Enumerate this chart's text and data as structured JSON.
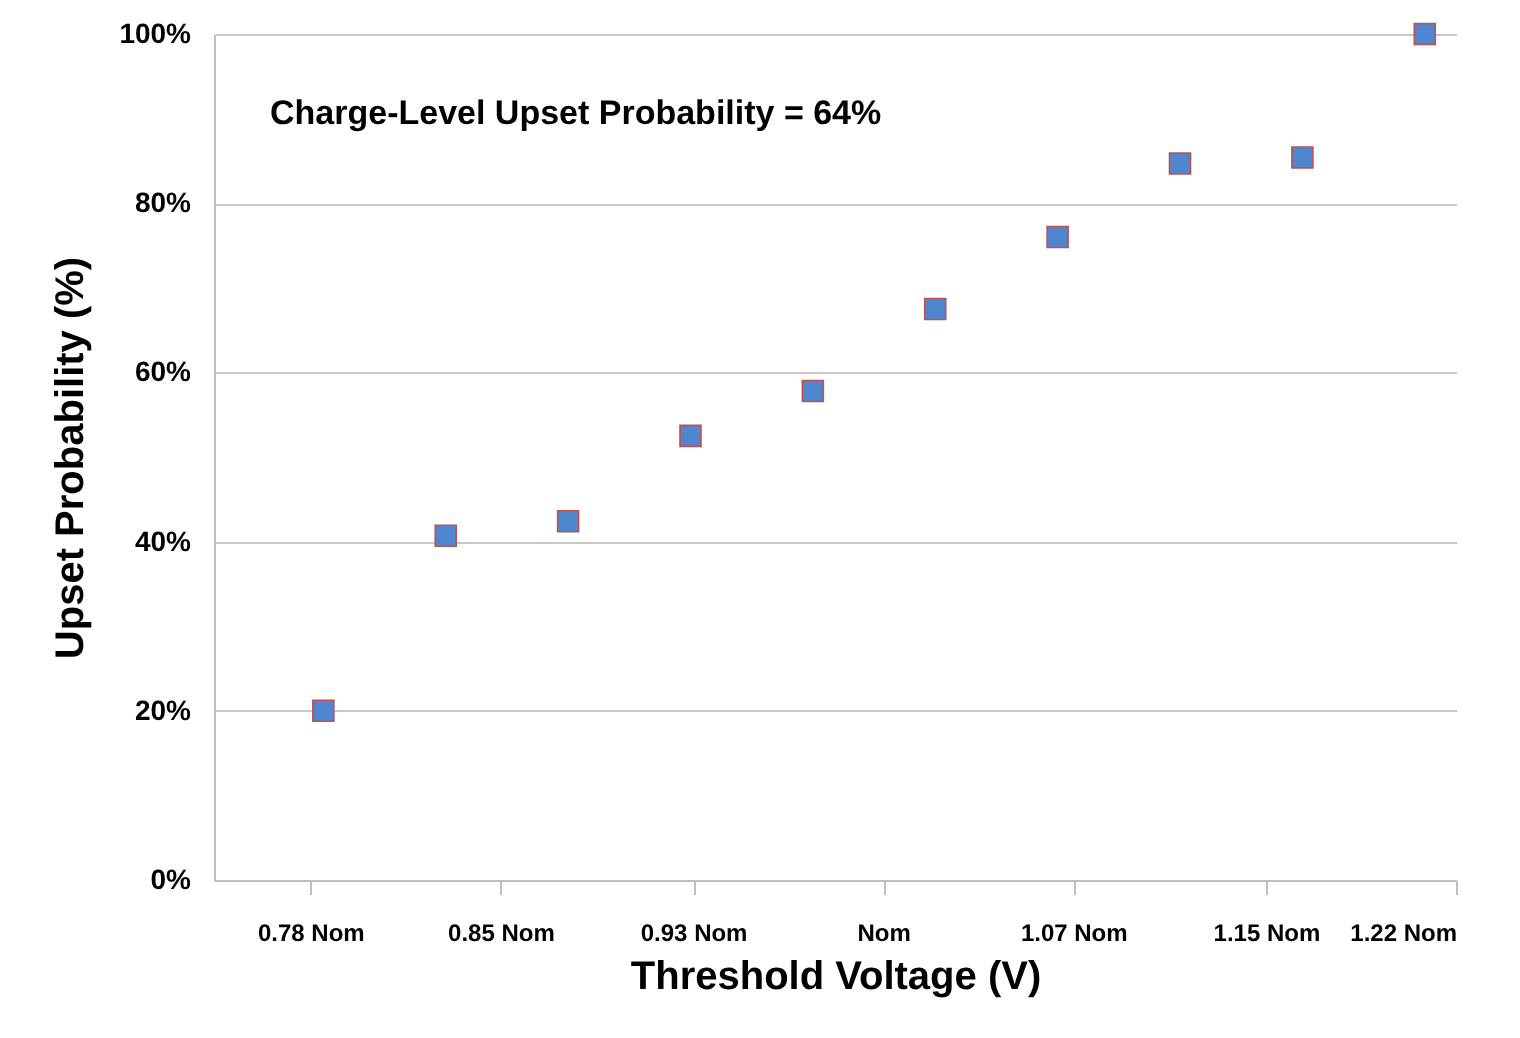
{
  "chart_data": {
    "type": "scatter",
    "xlabel": "Threshold Voltage (V)",
    "ylabel": "Upset Probability (%)",
    "annotations": [
      "Charge-Level Upset Probability = 64%"
    ],
    "x": [
      0.785,
      0.832,
      0.879,
      0.926,
      0.973,
      1.02,
      1.067,
      1.114,
      1.161,
      1.208
    ],
    "series": [
      {
        "color": "#4f86d0",
        "values": [
          20,
          40.7,
          42.4,
          52.5,
          57.8,
          67.5,
          76,
          84.7,
          85.4,
          100
        ]
      }
    ],
    "xlim": [
      0.743,
      1.22
    ],
    "xticks": [
      {
        "value": 0.78,
        "label": "0.78 Nom"
      },
      {
        "value": 0.853,
        "label": "0.85 Nom"
      },
      {
        "value": 0.927,
        "label": "0.93 Nom"
      },
      {
        "value": 1.0,
        "label": "Nom"
      },
      {
        "value": 1.073,
        "label": "1.07 Nom"
      },
      {
        "value": 1.147,
        "label": "1.15 Nom"
      },
      {
        "value": 1.22,
        "label": "1.22 Nom"
      }
    ],
    "ylim": [
      0,
      100
    ],
    "yticks": [
      {
        "value": 0,
        "label": "0%"
      },
      {
        "value": 20,
        "label": "20%"
      },
      {
        "value": 40,
        "label": "40%"
      },
      {
        "value": 60,
        "label": "60%"
      },
      {
        "value": 80,
        "label": "80%"
      },
      {
        "value": 100,
        "label": "100%"
      }
    ],
    "grid": "y",
    "marker": "square"
  }
}
